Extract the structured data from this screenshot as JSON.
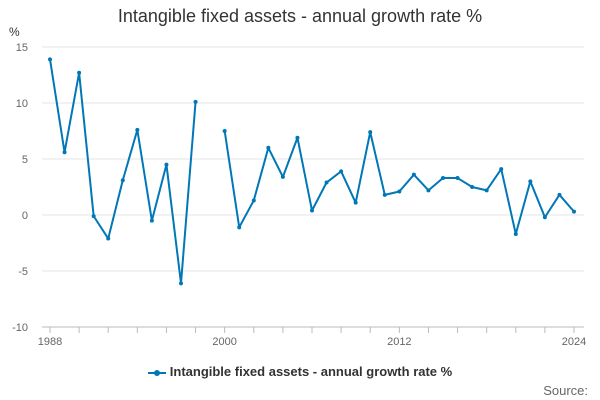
{
  "chart_data": {
    "type": "line",
    "title": "Intangible fixed assets - annual growth rate %",
    "ylabel": "%",
    "xlabel": "",
    "ylim": [
      -10,
      15
    ],
    "yticks": [
      15,
      10,
      5,
      0,
      -5,
      -10
    ],
    "xlim": [
      1988,
      2024
    ],
    "xticks": [
      1988,
      2000,
      2012,
      2024
    ],
    "color": "#0077b6",
    "legend": "Intangible fixed assets - annual growth rate %",
    "source_label": "Source:",
    "series": [
      {
        "name": "Intangible fixed assets - annual growth rate %",
        "x": [
          1988,
          1989,
          1990,
          1991,
          1992,
          1993,
          1994,
          1995,
          1996,
          1997,
          1998,
          1999,
          2000,
          2001,
          2002,
          2003,
          2004,
          2005,
          2006,
          2007,
          2008,
          2009,
          2010,
          2011,
          2012,
          2013,
          2014,
          2015,
          2016,
          2017,
          2018,
          2019,
          2020,
          2021,
          2022,
          2023,
          2024
        ],
        "values": [
          13.9,
          5.6,
          12.7,
          -0.1,
          -2.1,
          3.1,
          7.6,
          -0.5,
          4.5,
          -6.1,
          10.1,
          null,
          7.5,
          -1.1,
          1.3,
          6.0,
          3.4,
          6.9,
          0.4,
          2.9,
          3.9,
          1.1,
          7.4,
          1.8,
          2.1,
          3.6,
          2.2,
          3.3,
          3.3,
          2.5,
          2.2,
          4.1,
          -1.7,
          3.0,
          -0.2,
          1.8,
          0.3
        ]
      }
    ]
  }
}
